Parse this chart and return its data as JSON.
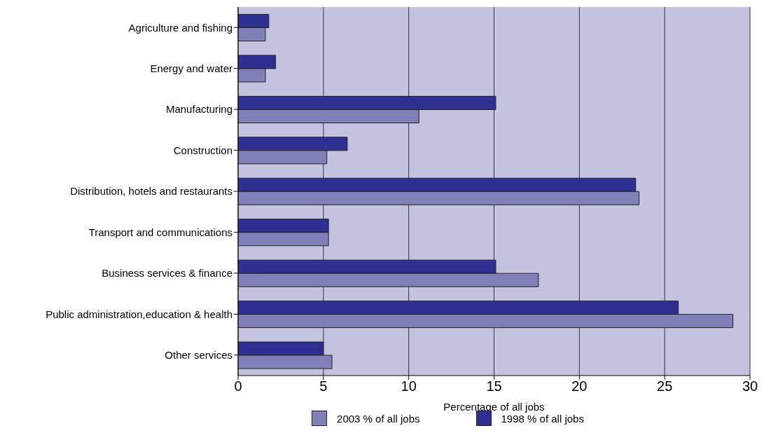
{
  "chart_data": {
    "type": "bar",
    "orientation": "horizontal",
    "xlabel": "Percentage of all jobs",
    "categories": [
      "Agriculture and fishing",
      "Energy and water",
      "Manufacturing",
      "Construction",
      "Distribution, hotels and restaurants",
      "Transport and communications",
      "Business services & finance",
      "Public administration,education & health",
      "Other services"
    ],
    "series": [
      {
        "name": "1998 % of all jobs",
        "color": "#2e3192",
        "values": [
          1.8,
          2.2,
          15.1,
          6.4,
          23.3,
          5.3,
          15.1,
          25.8,
          5.0
        ]
      },
      {
        "name": "2003 % of all jobs",
        "color": "#8080b8",
        "values": [
          1.6,
          1.6,
          10.6,
          5.2,
          23.5,
          5.3,
          17.6,
          29.0,
          5.5
        ]
      }
    ],
    "xlim": [
      0,
      30
    ],
    "xticks": [
      0,
      5,
      10,
      15,
      20,
      25,
      30
    ],
    "grid": "x",
    "legend": "bottom"
  }
}
